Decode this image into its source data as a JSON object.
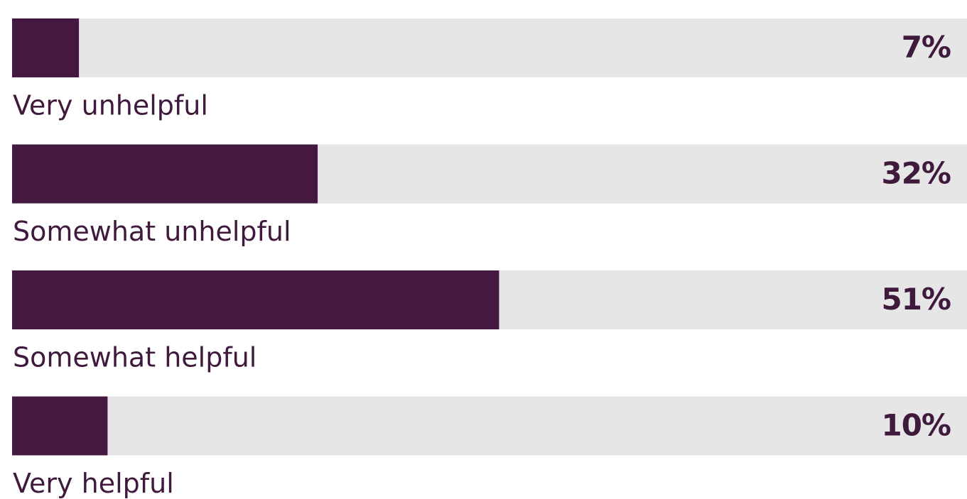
{
  "chart_data": {
    "type": "bar",
    "categories": [
      "Very unhelpful",
      "Somewhat unhelpful",
      "Somewhat helpful",
      "Very helpful"
    ],
    "values": [
      7,
      32,
      51,
      10
    ],
    "value_labels": [
      "7%",
      "32%",
      "51%",
      "10%"
    ],
    "color": "#451842",
    "track_color": "#e6e6e6",
    "xlim": [
      0,
      100
    ]
  }
}
